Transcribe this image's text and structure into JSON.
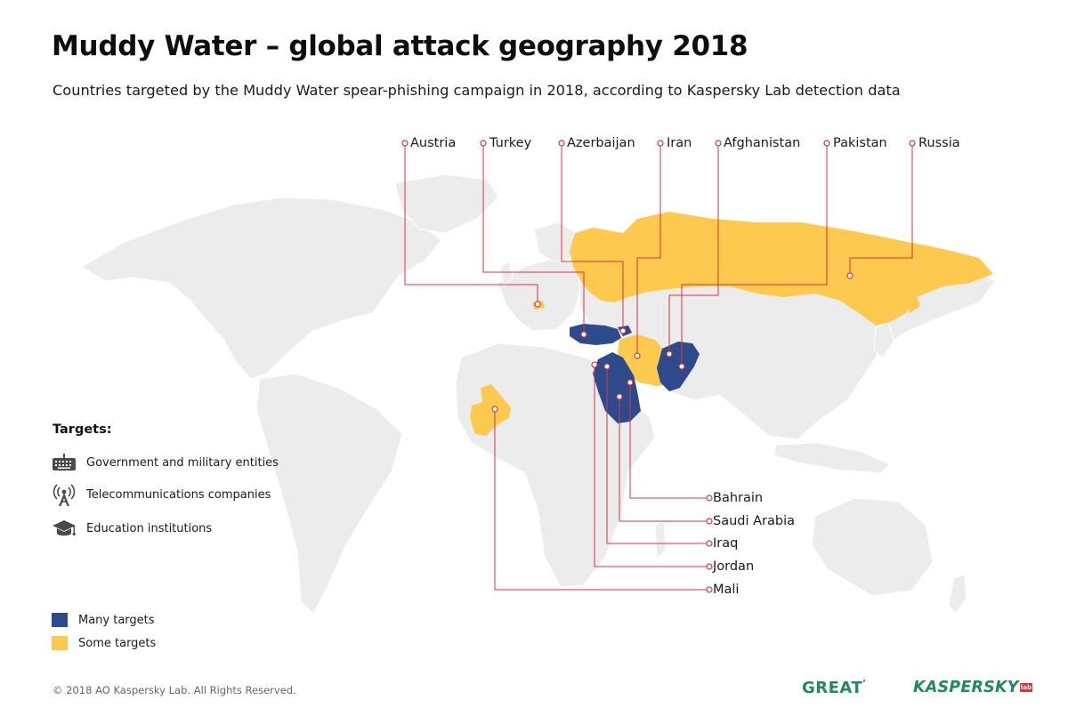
{
  "title": "Muddy Water – global attack geography 2018",
  "subtitle": "Countries targeted by the Muddy Water spear-phishing campaign in 2018, according to Kaspersky Lab detection data",
  "top_callouts": [
    "Austria",
    "Turkey",
    "Azerbaijan",
    "Iran",
    "Afghanistan",
    "Pakistan",
    "Russia"
  ],
  "bottom_callouts": [
    "Bahrain",
    "Saudi Arabia",
    "Iraq",
    "Jordan",
    "Mali"
  ],
  "targets": {
    "heading": "Targets:",
    "items": [
      {
        "label": "Government and military entities",
        "icon": "keyboard-icon"
      },
      {
        "label": "Telecommunications companies",
        "icon": "antenna-tower-icon"
      },
      {
        "label": "Education institutions",
        "icon": "graduation-cap-icon"
      }
    ]
  },
  "intensity_legend": [
    {
      "label": "Many targets",
      "color": "#2d4a8c"
    },
    {
      "label": "Some targets",
      "color": "#fdc94e"
    }
  ],
  "colors": {
    "land": "#ececec",
    "many": "#2d4a8c",
    "some": "#fdc94e",
    "leader": "#e0313a",
    "brand": "#1e8a64"
  },
  "footer": {
    "copyright": "© 2018 AO Kaspersky Lab. All Rights Reserved.",
    "logo_great": "GREAT",
    "logo_kaspersky": "KASPERSKY",
    "logo_lab": "lab"
  }
}
